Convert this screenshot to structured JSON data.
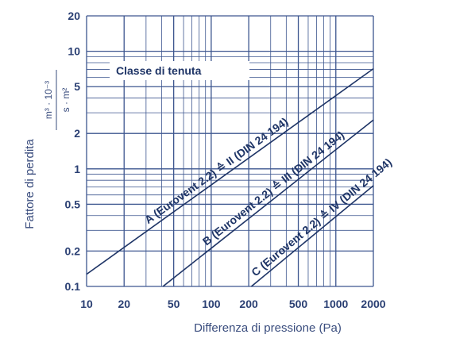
{
  "chart_data": {
    "type": "line",
    "title": "",
    "xlabel": "Differenza di pressione (Pa)",
    "ylabel": "Fattore di perdita",
    "y_unit_numerator": "m³ · 10⁻³",
    "y_unit_denominator": "s · m²",
    "legend_title": "Classe di tenuta",
    "x_scale": "log",
    "y_scale": "log",
    "xlim": [
      10,
      2000
    ],
    "ylim": [
      0.1,
      20
    ],
    "grid": true,
    "x_ticks": [
      10,
      20,
      50,
      100,
      200,
      500,
      1000,
      2000
    ],
    "x_tick_labels": [
      "10",
      "20",
      "50",
      "100",
      "200",
      "500",
      "1000",
      "2000"
    ],
    "y_ticks": [
      0.1,
      0.2,
      0.5,
      1,
      2,
      5,
      10,
      20
    ],
    "y_tick_labels": [
      "0.1",
      "0.2",
      "0.5",
      "1",
      "2",
      "5",
      "10",
      "20"
    ],
    "series": [
      {
        "name": "A (Eurovent 2.2) ≙ II (DIN 24 194)",
        "x": [
          10,
          2000
        ],
        "y": [
          0.127,
          7.1
        ]
      },
      {
        "name": "B (Eurovent 2.2) ≙ III (DIN 24 194)",
        "x": [
          41,
          2000
        ],
        "y": [
          0.1,
          2.6
        ]
      },
      {
        "name": "C (Eurovent 2.2) ≙ IV (DIN 24 194)",
        "x": [
          210,
          2000
        ],
        "y": [
          0.1,
          0.72
        ]
      }
    ]
  },
  "colors": {
    "line": "#1e3466",
    "grid": "#3d568f",
    "text": "#2a3f73"
  }
}
